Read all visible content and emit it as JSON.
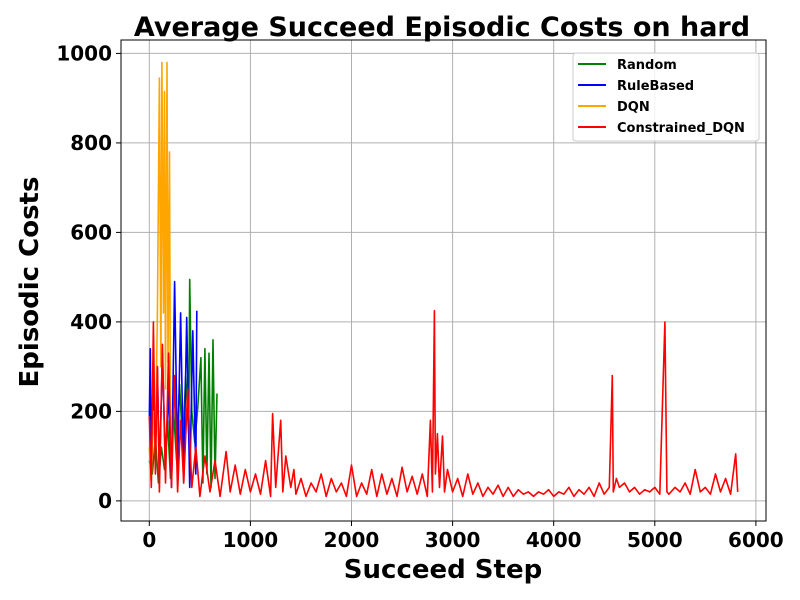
{
  "chart_data": {
    "type": "line",
    "title": "Average Succeed Episodic Costs on hard",
    "xlabel": "Succeed Step",
    "ylabel": "Episodic Costs",
    "xlim": [
      -280,
      6100
    ],
    "ylim": [
      -45,
      1030
    ],
    "xticks": [
      0,
      1000,
      2000,
      3000,
      4000,
      5000,
      6000
    ],
    "yticks": [
      0,
      200,
      400,
      600,
      800,
      1000
    ],
    "grid": true,
    "legend_position": "top-right",
    "series": [
      {
        "name": "Random",
        "color": "#008000",
        "x": [
          0,
          30,
          60,
          90,
          120,
          150,
          180,
          210,
          240,
          270,
          300,
          330,
          360,
          390,
          400,
          420,
          450,
          480,
          510,
          530,
          550,
          570,
          590,
          610,
          630,
          650,
          670
        ],
        "values": [
          90,
          60,
          140,
          40,
          120,
          70,
          180,
          50,
          200,
          90,
          260,
          120,
          280,
          150,
          495,
          200,
          130,
          210,
          320,
          40,
          340,
          60,
          330,
          30,
          360,
          50,
          240
        ]
      },
      {
        "name": "RuleBased",
        "color": "#0000ff",
        "x": [
          0,
          10,
          20,
          40,
          60,
          80,
          100,
          130,
          160,
          190,
          220,
          250,
          280,
          310,
          340,
          370,
          400,
          430,
          460,
          470
        ],
        "values": [
          180,
          340,
          60,
          280,
          130,
          300,
          50,
          330,
          80,
          250,
          30,
          490,
          70,
          420,
          40,
          410,
          30,
          380,
          60,
          425
        ]
      },
      {
        "name": "DQN",
        "color": "#ffa500",
        "x": [
          0,
          20,
          40,
          60,
          80,
          100,
          115,
          125,
          140,
          150,
          160,
          175,
          185,
          200,
          210
        ],
        "values": [
          120,
          40,
          200,
          100,
          420,
          945,
          300,
          980,
          420,
          915,
          250,
          980,
          310,
          780,
          150
        ]
      },
      {
        "name": "Constrained_DQN",
        "color": "#ff0000",
        "x": [
          0,
          20,
          40,
          60,
          80,
          100,
          130,
          160,
          190,
          220,
          250,
          280,
          310,
          340,
          380,
          420,
          460,
          500,
          550,
          600,
          650,
          700,
          760,
          800,
          850,
          900,
          950,
          1000,
          1050,
          1100,
          1150,
          1200,
          1220,
          1250,
          1300,
          1320,
          1350,
          1400,
          1430,
          1450,
          1500,
          1550,
          1600,
          1650,
          1700,
          1750,
          1800,
          1850,
          1900,
          1950,
          2000,
          2050,
          2100,
          2150,
          2200,
          2250,
          2300,
          2350,
          2400,
          2450,
          2500,
          2550,
          2600,
          2650,
          2700,
          2750,
          2780,
          2800,
          2820,
          2830,
          2850,
          2870,
          2900,
          2920,
          2950,
          3000,
          3050,
          3100,
          3150,
          3200,
          3250,
          3300,
          3350,
          3400,
          3450,
          3500,
          3550,
          3600,
          3650,
          3700,
          3750,
          3800,
          3850,
          3900,
          3950,
          4000,
          4050,
          4100,
          4150,
          4200,
          4250,
          4300,
          4350,
          4400,
          4450,
          4500,
          4550,
          4580,
          4590,
          4620,
          4650,
          4700,
          4750,
          4800,
          4850,
          4900,
          4950,
          5000,
          5050,
          5100,
          5120,
          5140,
          5200,
          5250,
          5300,
          5350,
          5400,
          5450,
          5500,
          5550,
          5600,
          5650,
          5700,
          5750,
          5800,
          5820
        ],
        "values": [
          190,
          30,
          400,
          60,
          300,
          20,
          350,
          40,
          330,
          30,
          280,
          20,
          180,
          40,
          250,
          30,
          120,
          10,
          100,
          20,
          90,
          10,
          110,
          20,
          80,
          15,
          70,
          20,
          60,
          15,
          90,
          10,
          195,
          30,
          180,
          20,
          100,
          30,
          70,
          15,
          50,
          10,
          40,
          20,
          60,
          10,
          50,
          20,
          40,
          10,
          80,
          10,
          40,
          15,
          70,
          10,
          60,
          15,
          50,
          10,
          75,
          20,
          55,
          15,
          60,
          10,
          180,
          20,
          425,
          60,
          150,
          30,
          145,
          20,
          70,
          20,
          50,
          10,
          60,
          15,
          40,
          10,
          30,
          15,
          35,
          10,
          30,
          10,
          25,
          15,
          20,
          10,
          20,
          15,
          25,
          10,
          20,
          15,
          30,
          10,
          25,
          15,
          30,
          10,
          40,
          15,
          30,
          280,
          20,
          50,
          30,
          40,
          20,
          30,
          15,
          25,
          20,
          30,
          15,
          400,
          20,
          15,
          30,
          20,
          40,
          15,
          70,
          20,
          30,
          15,
          60,
          20,
          50,
          15,
          105,
          20
        ]
      }
    ]
  }
}
